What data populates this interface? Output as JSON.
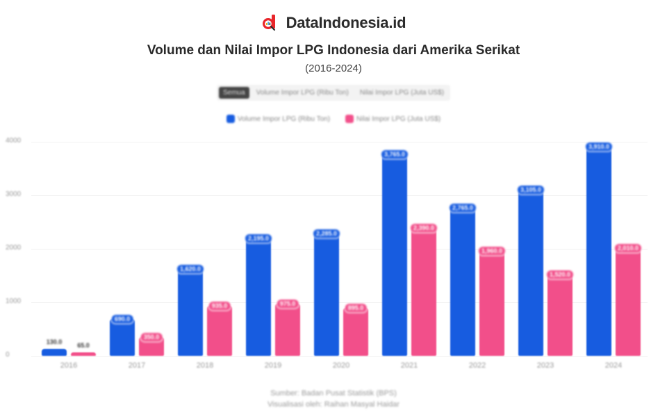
{
  "brand": {
    "name": "DataIndonesia.id",
    "logo_icon": "magnifier-d-logo",
    "logo_color": "#e8262b"
  },
  "header": {
    "title": "Volume dan Nilai Impor LPG Indonesia dari Amerika Serikat",
    "subtitle": "(2016-2024)"
  },
  "filters": {
    "options": [
      "Semua",
      "Volume Impor LPG (Ribu Ton)",
      "Nilai Impor LPG (Juta US$)"
    ],
    "selected": "Semua"
  },
  "legend": [
    {
      "label": "Volume Impor LPG (Ribu Ton)",
      "color": "#175ce0"
    },
    {
      "label": "Nilai Impor LPG (Juta US$)",
      "color": "#f24f8a"
    }
  ],
  "footer": {
    "source": "Sumber: Badan Pusat Statistik (BPS)",
    "credit": "Visualisasi oleh: Raihan Masyal Haidar"
  },
  "chart_data": {
    "type": "bar",
    "title": "Volume dan Nilai Impor LPG Indonesia dari Amerika Serikat",
    "subtitle": "(2016-2024)",
    "xlabel": "",
    "ylabel": "",
    "ylim": [
      0,
      4000
    ],
    "yticks": [
      0,
      1000,
      2000,
      3000,
      4000
    ],
    "grid": true,
    "legend_position": "top",
    "categories": [
      "2016",
      "2017",
      "2018",
      "2019",
      "2020",
      "2021",
      "2022",
      "2023",
      "2024"
    ],
    "series": [
      {
        "name": "Volume Impor LPG (Ribu Ton)",
        "color": "#175ce0",
        "values": [
          130,
          690,
          1620,
          2195,
          2285,
          3765,
          2765,
          3105,
          3910
        ]
      },
      {
        "name": "Nilai Impor LPG (Juta US$)",
        "color": "#f24f8a",
        "values": [
          65,
          350,
          935,
          975,
          895,
          2390,
          1960,
          1520,
          2010
        ]
      }
    ]
  }
}
